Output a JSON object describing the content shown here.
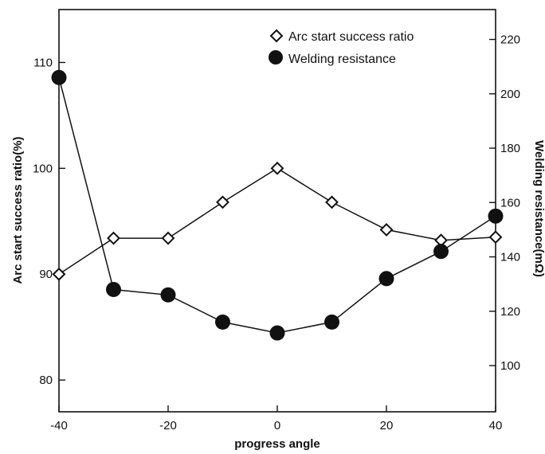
{
  "chart_data": {
    "type": "line",
    "title": "",
    "xlabel": "progress angle",
    "ylabel_left": "Arc start success ratio(%)",
    "ylabel_right": "Welding resistance(mΩ)",
    "xlim": [
      -40,
      40
    ],
    "ylim_left": [
      77,
      115
    ],
    "ylim_right": [
      83,
      231
    ],
    "x_ticks": [
      -40,
      -20,
      0,
      20,
      40
    ],
    "x_tick_labels": [
      "-40",
      "-20",
      "0",
      "20",
      "40"
    ],
    "y_left_ticks": [
      80,
      90,
      100,
      110
    ],
    "y_right_ticks": [
      100,
      120,
      140,
      160,
      180,
      200,
      220
    ],
    "grid": false,
    "legend_position": "top-right",
    "x": [
      -40,
      -30,
      -20,
      -10,
      0,
      10,
      20,
      30,
      40
    ],
    "series": [
      {
        "name": "Arc start success ratio",
        "axis": "left",
        "marker": "diamond-open",
        "values": [
          90.0,
          93.4,
          93.4,
          96.8,
          100.0,
          96.8,
          94.2,
          93.2,
          93.5
        ]
      },
      {
        "name": "Welding resistance",
        "axis": "right",
        "marker": "circle-filled",
        "values": [
          206,
          128,
          126,
          116,
          112,
          116,
          132,
          142,
          155
        ]
      }
    ]
  }
}
